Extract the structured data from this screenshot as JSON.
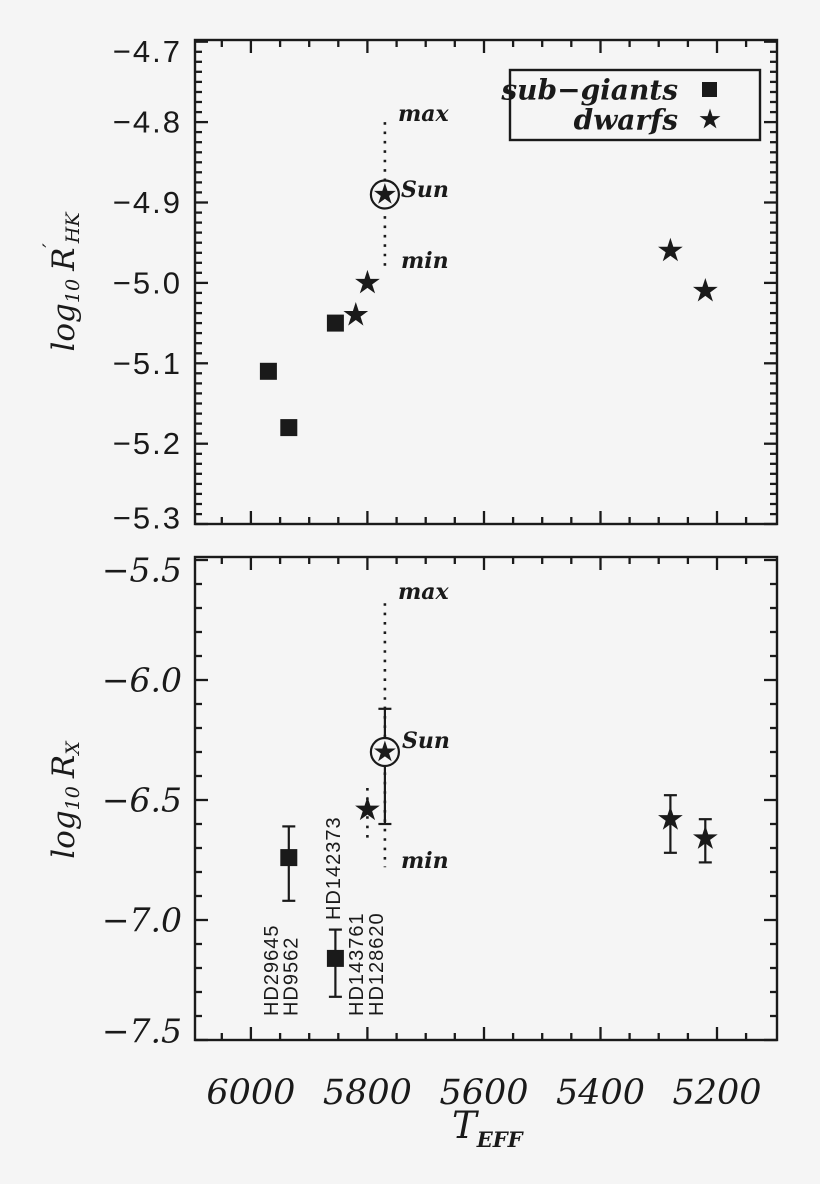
{
  "figure": {
    "background": "#f5f5f5",
    "ink": "#1a1a1a"
  },
  "legend": {
    "items": [
      {
        "label": "sub−giants",
        "marker": "square"
      },
      {
        "label": "dwarfs",
        "marker": "star"
      }
    ],
    "position": "top-right"
  },
  "xaxis": {
    "label": "T",
    "label_sub": "EFF",
    "ticks": [
      "6000",
      "5800",
      "5600",
      "5400",
      "5200"
    ],
    "tick_values": [
      6000,
      5800,
      5600,
      5400,
      5200
    ],
    "lim": [
      6096,
      5097
    ],
    "minor_step": 50,
    "reversed": true
  },
  "chart_data": [
    {
      "type": "scatter",
      "panel": "top",
      "ylabel": "log10 R'HK",
      "ylabel_parts": {
        "log": "log",
        "ten": "10",
        "r": "R",
        "prime": "′",
        "sub": "HK"
      },
      "ylim": [
        -4.7,
        -5.3
      ],
      "yticks": [
        "−4.7",
        "−4.8",
        "−4.9",
        "−5.0",
        "−5.1",
        "−5.2",
        "−5.3"
      ],
      "ytick_values": [
        -4.7,
        -4.8,
        -4.9,
        -5.0,
        -5.1,
        -5.2,
        -5.3
      ],
      "grid": false,
      "points": [
        {
          "name": "HD29645",
          "group": "sub-giants",
          "marker": "square",
          "teff": 5970,
          "value": -5.11
        },
        {
          "name": "HD9562",
          "group": "sub-giants",
          "marker": "square",
          "teff": 5935,
          "value": -5.18
        },
        {
          "name": "HD142373",
          "group": "sub-giants",
          "marker": "square",
          "teff": 5855,
          "value": -5.05
        },
        {
          "name": "HD143761",
          "group": "dwarfs",
          "marker": "star",
          "teff": 5820,
          "value": -5.04
        },
        {
          "name": "HD128620",
          "group": "dwarfs",
          "marker": "star",
          "teff": 5800,
          "value": -5.0
        },
        {
          "name": "HD10700",
          "group": "dwarfs",
          "marker": "star",
          "teff": 5280,
          "value": -4.96
        },
        {
          "name": "HD3651",
          "group": "dwarfs",
          "marker": "star",
          "teff": 5220,
          "value": -5.01
        }
      ],
      "sun": {
        "label": "Sun",
        "max_label": "max",
        "min_label": "min",
        "teff": 5770,
        "value": -4.89,
        "cycle_max": -4.8,
        "cycle_min": -4.98
      }
    },
    {
      "type": "scatter",
      "panel": "bottom",
      "ylabel": "log10 RX",
      "ylabel_parts": {
        "log": "log",
        "ten": "10",
        "r": "R",
        "sub": "X"
      },
      "ylim": [
        -5.49,
        -7.5
      ],
      "yticks": [
        "−5.5",
        "−6.0",
        "−6.5",
        "−7.0",
        "−7.5"
      ],
      "ytick_values": [
        -5.5,
        -6.0,
        -6.5,
        -7.0,
        -7.5
      ],
      "grid": false,
      "points": [
        {
          "name": "HD9562",
          "group": "sub-giants",
          "marker": "square",
          "teff": 5935,
          "value": -6.74,
          "err_hi": -6.61,
          "err_lo": -6.92,
          "err_style": "solid"
        },
        {
          "name": "HD142373",
          "group": "sub-giants",
          "marker": "square",
          "teff": 5855,
          "value": -7.16,
          "err_hi": -7.04,
          "err_lo": -7.32,
          "err_style": "solid"
        },
        {
          "name": "HD143761/HD128620",
          "group": "dwarfs",
          "marker": "star",
          "teff": 5800,
          "value": -6.54,
          "err_hi": -6.45,
          "err_lo": -6.67,
          "err_style": "dotted"
        },
        {
          "name": "HD10700",
          "group": "dwarfs",
          "marker": "star",
          "teff": 5280,
          "value": -6.58,
          "err_hi": -6.48,
          "err_lo": -6.72,
          "err_style": "solid"
        },
        {
          "name": "HD3651",
          "group": "dwarfs",
          "marker": "star",
          "teff": 5220,
          "value": -6.66,
          "err_hi": -6.58,
          "err_lo": -6.76,
          "err_style": "solid"
        }
      ],
      "sun": {
        "label": "Sun",
        "max_label": "max",
        "min_label": "min",
        "teff": 5770,
        "value": -6.3,
        "err_hi": -6.12,
        "err_lo": -6.6,
        "cycle_max": -5.68,
        "cycle_min": -6.78
      },
      "star_labels": [
        {
          "text": "HD29645",
          "teff": 5964,
          "value": -7.4
        },
        {
          "text": "HD9562",
          "teff": 5930,
          "value": -7.4
        },
        {
          "text": "HD142373",
          "teff": 5857,
          "value": -7.0
        },
        {
          "text": "HD143761",
          "teff": 5818,
          "value": -7.4
        },
        {
          "text": "HD128620",
          "teff": 5784,
          "value": -7.4
        }
      ]
    }
  ]
}
